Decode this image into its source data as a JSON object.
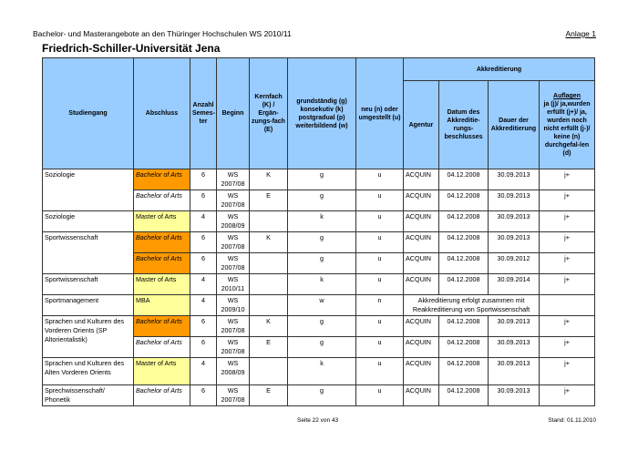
{
  "header": {
    "title": "Bachelor- und Masterangebote an den Thüringer Hochschulen WS 2010/11",
    "anlage": "Anlage 1"
  },
  "university": "Friedrich-Schiller-Universität Jena",
  "colors": {
    "header": "#99ccff",
    "bachelor": "#ff9900",
    "master": "#ffff99"
  },
  "columns": {
    "studiengang": "Studiengang",
    "abschluss": "Abschluss",
    "semester": "Anzahl Semes-ter",
    "beginn": "Beginn",
    "kernfach": "Kernfach (K) / Ergän-zungs-fach (E)",
    "art": "grundständig (g) konsekutiv (k) postgradual (p) weiterbildend (w)",
    "neu": "neu (n) oder umgestellt (u)",
    "akkreditierung": "Akkreditierung",
    "agentur": "Agentur",
    "datum": "Datum des Akkreditie-rungs-beschlusses",
    "dauer": "Dauer der Akkreditierung",
    "auflagen_title": "Auflagen",
    "auflagen": "ja (j)/ ja,wurden erfüllt (j+)/ ja, wurden noch nicht erfüllt (j-)/ keine (n) durchgefal-len (d)"
  },
  "rows": [
    {
      "studiengang": "Soziologie",
      "span": 2,
      "abschluss": "Bachelor of Arts",
      "style": "orange",
      "sem": "6",
      "beginn": "WS 2007/08",
      "kern": "K",
      "art": "g",
      "neu": "u",
      "agentur": "ACQUIN",
      "datum": "04.12.2008",
      "dauer": "30.09.2013",
      "auflagen": "j+"
    },
    {
      "abschluss": "Bachelor of Arts",
      "style": "plain",
      "sem": "6",
      "beginn": "WS 2007/08",
      "kern": "E",
      "art": "g",
      "neu": "u",
      "agentur": "ACQUIN",
      "datum": "04.12.2008",
      "dauer": "30.09.2013",
      "auflagen": "j+"
    },
    {
      "studiengang": "Soziologie",
      "span": 1,
      "abschluss": "Master of Arts",
      "style": "yellow",
      "sem": "4",
      "beginn": "WS 2008/09",
      "kern": "",
      "art": "k",
      "neu": "u",
      "agentur": "ACQUIN",
      "datum": "04.12.2008",
      "dauer": "30.09.2013",
      "auflagen": "j+"
    },
    {
      "studiengang": "Sportwissenschaft",
      "span": 2,
      "abschluss": "Bachelor of Arts",
      "style": "orange",
      "sem": "6",
      "beginn": "WS 2007/08",
      "kern": "K",
      "art": "g",
      "neu": "u",
      "agentur": "ACQUIN",
      "datum": "04.12.2008",
      "dauer": "30.09.2013",
      "auflagen": "j+"
    },
    {
      "abschluss": "Bachelor of Arts",
      "style": "orange",
      "sem": "6",
      "beginn": "WS 2007/08",
      "kern": "",
      "art": "g",
      "neu": "u",
      "agentur": "ACQUIN",
      "datum": "04.12.2008",
      "dauer": "30.09.2012",
      "auflagen": "j+"
    },
    {
      "studiengang": "Sportwissenschaft",
      "span": 1,
      "abschluss": "Master of Arts",
      "style": "yellow",
      "sem": "4",
      "beginn": "WS 2010/11",
      "kern": "",
      "art": "k",
      "neu": "u",
      "agentur": "ACQUIN",
      "datum": "04.12.2008",
      "dauer": "30.09.2014",
      "auflagen": "j+"
    },
    {
      "studiengang": "Sportmanagement",
      "span": 1,
      "abschluss": "MBA",
      "style": "yellow",
      "sem": "4",
      "beginn": "WS 2009/10",
      "kern": "",
      "art": "w",
      "neu": "n",
      "note": "Akkreditierung erfolgt zusammen mit Reakkreditierung von Sportwissenschaft"
    },
    {
      "studiengang": "Sprachen und Kulturen des Vorderen Orients (SP Altorientalistik)",
      "span": 2,
      "abschluss": "Bachelor of Arts",
      "style": "orange",
      "sem": "6",
      "beginn": "WS 2007/08",
      "kern": "K",
      "art": "g",
      "neu": "u",
      "agentur": "ACQUIN",
      "datum": "04.12.2008",
      "dauer": "30.09.2013",
      "auflagen": "j+"
    },
    {
      "abschluss": "Bachelor of Arts",
      "style": "plain",
      "sem": "6",
      "beginn": "WS 2007/08",
      "kern": "E",
      "art": "g",
      "neu": "u",
      "agentur": "ACQUIN",
      "datum": "04.12.2008",
      "dauer": "30.09.2013",
      "auflagen": "j+"
    },
    {
      "studiengang": "Sprachen und Kulturen des Alten Vorderen Orients",
      "span": 1,
      "abschluss": "Master of Arts",
      "style": "yellow",
      "sem": "4",
      "beginn": "WS 2008/09",
      "kern": "",
      "art": "k",
      "neu": "u",
      "agentur": "ACQUIN",
      "datum": "04.12.2008",
      "dauer": "30.09.2013",
      "auflagen": "j+",
      "tall": true
    },
    {
      "studiengang": "Sprechwissenschaft/ Phonetik",
      "span": 1,
      "abschluss": "Bachelor of Arts",
      "style": "plain",
      "sem": "6",
      "beginn": "WS 2007/08",
      "kern": "E",
      "art": "g",
      "neu": "u",
      "agentur": "ACQUIN",
      "datum": "04.12.2008",
      "dauer": "30.09.2013",
      "auflagen": "j+"
    }
  ],
  "footer": {
    "page": "Seite 22 von 43",
    "stand": "Stand: 01.11.2010"
  }
}
